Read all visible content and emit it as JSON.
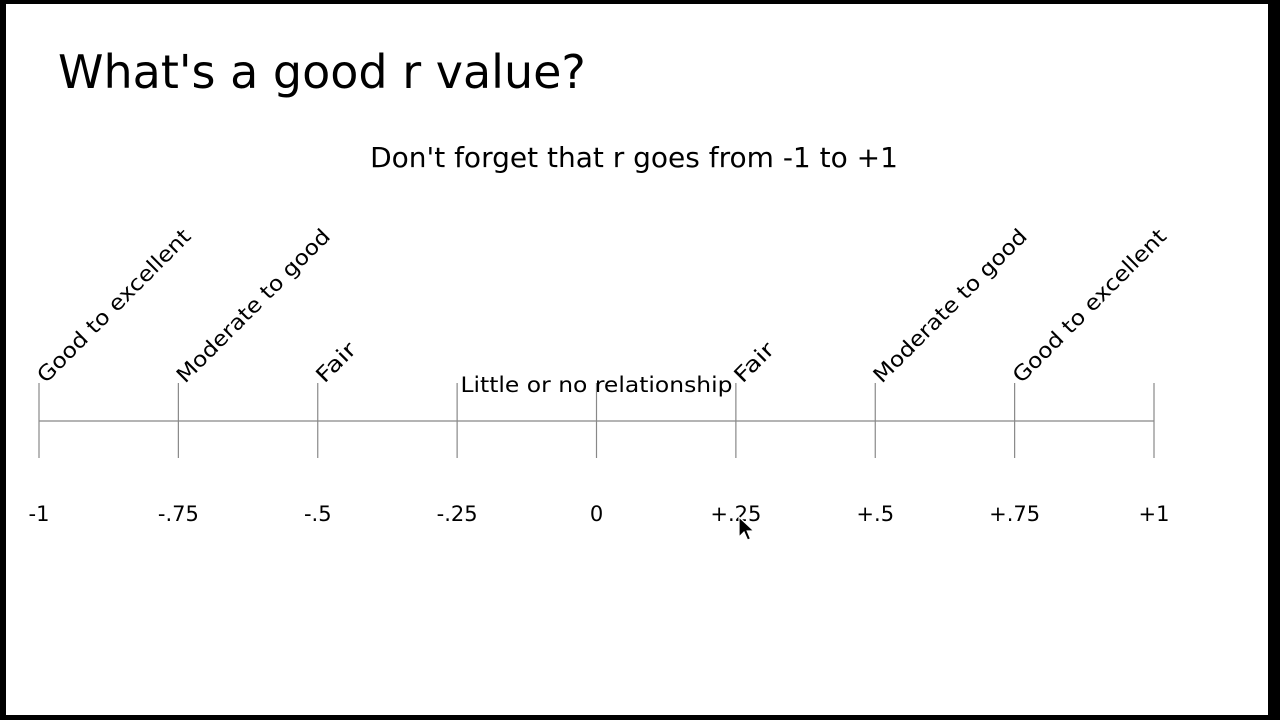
{
  "slide": {
    "title": "What's a good r value?",
    "subtitle": "Don't forget that r goes from -1 to +1"
  },
  "colors": {
    "background": "#ffffff",
    "frame": "#000000",
    "text": "#000000",
    "axis_line": "#888888"
  },
  "icons": {
    "cursor": "mouse-pointer-icon"
  },
  "scale": {
    "min": -1,
    "max": 1,
    "ticks": [
      {
        "value": -1,
        "label": "-1"
      },
      {
        "value": -0.75,
        "label": "-.75"
      },
      {
        "value": -0.5,
        "label": "-.5"
      },
      {
        "value": -0.25,
        "label": "-.25"
      },
      {
        "value": 0,
        "label": "0"
      },
      {
        "value": 0.25,
        "label": "+.25"
      },
      {
        "value": 0.5,
        "label": "+.5"
      },
      {
        "value": 0.75,
        "label": "+.75"
      },
      {
        "value": 1,
        "label": "+1"
      }
    ],
    "categories": [
      {
        "from": -1,
        "to": -0.75,
        "label": "Good to excellent",
        "rotated": true
      },
      {
        "from": -0.75,
        "to": -0.5,
        "label": "Moderate to good",
        "rotated": true
      },
      {
        "from": -0.5,
        "to": -0.25,
        "label": "Fair",
        "rotated": true
      },
      {
        "from": -0.25,
        "to": 0.25,
        "label": "Little or no relationship",
        "rotated": false
      },
      {
        "from": 0.25,
        "to": 0.5,
        "label": "Fair",
        "rotated": true
      },
      {
        "from": 0.5,
        "to": 0.75,
        "label": "Moderate to good",
        "rotated": true
      },
      {
        "from": 0.75,
        "to": 1,
        "label": "Good to excellent",
        "rotated": true
      }
    ]
  }
}
